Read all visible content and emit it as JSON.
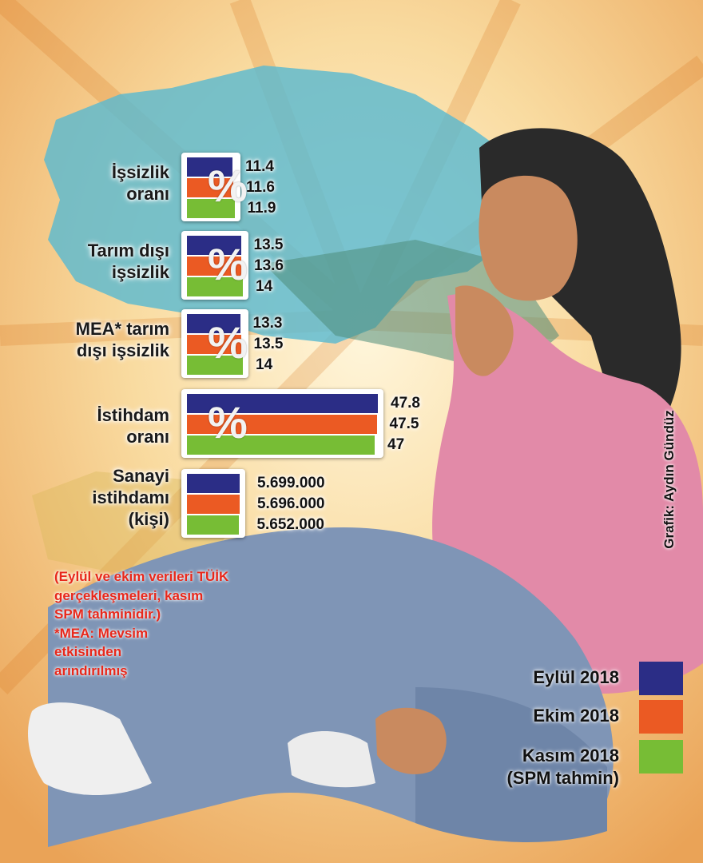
{
  "colors": {
    "eylul": "#2b2d86",
    "ekim": "#eb5a23",
    "kasim": "#77bd35",
    "note": "#e8281b"
  },
  "chart_data": {
    "type": "bar",
    "orientation": "horizontal",
    "series_names": [
      "Eylül 2018",
      "Ekim 2018",
      "Kasım 2018"
    ],
    "groups": [
      {
        "label_lines": [
          "İşsizlik",
          "oranı"
        ],
        "percent_symbol": "%",
        "values": [
          11.4,
          11.6,
          11.9
        ],
        "value_labels": [
          "11.4",
          "11.6",
          "11.9"
        ]
      },
      {
        "label_lines": [
          "Tarım dışı",
          "işsizlik"
        ],
        "percent_symbol": "%",
        "values": [
          13.5,
          13.6,
          14
        ],
        "value_labels": [
          "13.5",
          "13.6",
          "14"
        ]
      },
      {
        "label_lines": [
          "MEA* tarım",
          "dışı işsizlik"
        ],
        "percent_symbol": "%",
        "values": [
          13.3,
          13.5,
          14
        ],
        "value_labels": [
          "13.3",
          "13.5",
          "14"
        ]
      },
      {
        "label_lines": [
          "İstihdam",
          "oranı"
        ],
        "percent_symbol": "%",
        "values": [
          47.8,
          47.5,
          47
        ],
        "value_labels": [
          "47.8",
          "47.5",
          "47"
        ]
      },
      {
        "label_lines": [
          "Sanayi",
          "istihdamı",
          "(kişi)"
        ],
        "percent_symbol": "",
        "values": [
          5699000,
          5696000,
          5652000
        ],
        "value_labels": [
          "5.699.000",
          "5.696.000",
          "5.652.000"
        ]
      }
    ]
  },
  "notes": [
    "(Eylül ve ekim verileri TÜİK",
    "gerçekleşmeleri, kasım",
    "SPM tahminidir.)",
    "*MEA: Mevsim",
    "etkisinden",
    "arındırılmış"
  ],
  "legend": [
    {
      "label_lines": [
        "Eylül 2018"
      ],
      "color": "#2b2d86"
    },
    {
      "label_lines": [
        "Ekim 2018"
      ],
      "color": "#eb5a23"
    },
    {
      "label_lines": [
        "Kasım 2018",
        "(SPM tahmin)"
      ],
      "color": "#77bd35"
    }
  ],
  "credit": "Grafik: Aydın Gündüz"
}
